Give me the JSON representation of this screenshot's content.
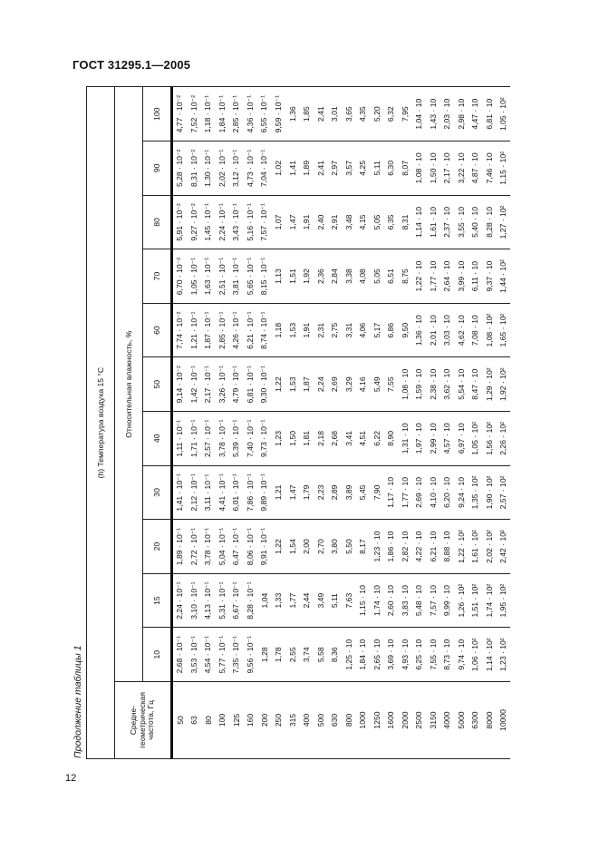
{
  "header": {
    "doc_title": "ГОСТ 31295.1—2005",
    "page_number": "12",
    "continuation": "Продолжение таблицы 1"
  },
  "table": {
    "title": "(h) Температура воздуха 15 °С",
    "freq_header": "Средне-геометрическая частота, Гц",
    "humidity_header": "Относительная влажность, %",
    "frequencies": [
      "50",
      "63",
      "80",
      "100",
      "125",
      "160",
      "200",
      "250",
      "315",
      "400",
      "500",
      "630",
      "800",
      "1000",
      "1250",
      "1600",
      "2000",
      "2500",
      "3150",
      "4000",
      "5000",
      "6300",
      "8000",
      "10000"
    ],
    "columns": [
      {
        "humidity": "10",
        "values": [
          "2,68 · 10⁻¹",
          "3,53 · 10⁻¹",
          "4,54 · 10⁻¹",
          "5,77 · 10⁻¹",
          "7,35 · 10⁻¹",
          "9,56 · 10⁻¹",
          "1,28",
          "1,78",
          "2,55",
          "3,74",
          "5,58",
          "8,36",
          "1,25 · 10",
          "1,84 · 10",
          "2,65 · 10",
          "3,69 · 10",
          "4,93 · 10",
          "6,25 · 10",
          "7,55 · 10",
          "8,73 · 10",
          "9,74 · 10",
          "1,06 · 10²",
          "1,14 · 10²",
          "1,23 · 10²"
        ]
      },
      {
        "humidity": "15",
        "values": [
          "2,24 · 10⁻¹",
          "3,10 · 10⁻¹",
          "4,13 · 10⁻¹",
          "5,31 · 10⁻¹",
          "6,67 · 10⁻¹",
          "8,28 · 10⁻¹",
          "1,04",
          "1,33",
          "1,77",
          "2,44",
          "3,49",
          "5,11",
          "7,63",
          "1,15 · 10",
          "1,74 · 10",
          "2,60 · 10",
          "3,83 · 10",
          "5,48 · 10",
          "7,57 · 10",
          "9,99 · 10",
          "1,26 · 10²",
          "1,51 · 10²",
          "1,74 · 10²",
          "1,95 · 10²"
        ]
      },
      {
        "humidity": "20",
        "values": [
          "1,89 · 10⁻¹",
          "2,72 · 10⁻¹",
          "3,78 · 10⁻¹",
          "5,04 · 10⁻¹",
          "6,47 · 10⁻¹",
          "8,06 · 10⁻¹",
          "9,91 · 10⁻¹",
          "1,22",
          "1,54",
          "2,00",
          "2,70",
          "3,80",
          "5,50",
          "8,17",
          "1,23 · 10",
          "1,86 · 10",
          "2,82 · 10",
          "4,22 · 10",
          "6,21 · 10",
          "8,88 · 10",
          "1,22 · 10²",
          "1,61 · 10²",
          "2,02 · 10²",
          "2,42 · 10²"
        ]
      },
      {
        "humidity": "30",
        "values": [
          "1,41 · 10⁻¹",
          "2,12 · 10⁻¹",
          "3,11 · 10⁻¹",
          "4,41 · 10⁻¹",
          "6,01 · 10⁻¹",
          "7,86 · 10⁻¹",
          "9,89 · 10⁻¹",
          "1,21",
          "1,47",
          "1,79",
          "2,23",
          "2,89",
          "3,89",
          "5,45",
          "7,90",
          "1,17 · 10",
          "1,77 · 10",
          "2,69 · 10",
          "4,10 · 10",
          "6,20 · 10",
          "9,24 · 10",
          "1,35 · 10²",
          "1,90 · 10²",
          "2,57 · 10²"
        ]
      },
      {
        "humidity": "40",
        "values": [
          "1,11 · 10⁻¹",
          "1,71 · 10⁻¹",
          "2,57 · 10⁻¹",
          "3,78 · 10⁻¹",
          "5,39 · 10⁻¹",
          "7,40 · 10⁻¹",
          "9,73 · 10⁻¹",
          "1,23",
          "1,50",
          "1,81",
          "2,18",
          "2,68",
          "3,41",
          "4,51",
          "6,22",
          "8,90",
          "1,31 · 10",
          "1,97 · 10",
          "2,99 · 10",
          "4,57 · 10",
          "6,97 · 10",
          "1,05 · 10²",
          "1,56 · 10²",
          "2,26 · 10²"
        ]
      },
      {
        "humidity": "50",
        "values": [
          "9,14 · 10⁻²",
          "1,42 · 10⁻¹",
          "2,17 · 10⁻¹",
          "3,26 · 10⁻¹",
          "4,79 · 10⁻¹",
          "6,81 · 10⁻¹",
          "9,30 · 10⁻¹",
          "1,22",
          "1,53",
          "1,87",
          "2,24",
          "2,69",
          "3,29",
          "4,16",
          "5,49",
          "7,55",
          "1,08 · 10",
          "1,59 · 10",
          "2,38 · 10",
          "3,62 · 10",
          "5,54 · 10",
          "8,47 · 10",
          "1,29 · 10²",
          "1,92 · 10²"
        ]
      },
      {
        "humidity": "60",
        "values": [
          "7,74 · 10⁻²",
          "1,21 · 10⁻¹",
          "1,87 · 10⁻¹",
          "2,85 · 10⁻¹",
          "4,26 · 10⁻¹",
          "6,21 · 10⁻¹",
          "8,74 · 10⁻¹",
          "1,18",
          "1,53",
          "1,91",
          "2,31",
          "2,75",
          "3,31",
          "4,06",
          "5,17",
          "6,86",
          "9,50",
          "1,36 · 10",
          "2,01 · 10",
          "3,03 · 10",
          "4,62 · 10",
          "7,08 · 10",
          "1,08 · 10²",
          "1,65 · 10²"
        ]
      },
      {
        "humidity": "70",
        "values": [
          "6,70 · 10⁻²",
          "1,05 · 10⁻¹",
          "1,63 · 10⁻¹",
          "2,51 · 10⁻¹",
          "3,81 · 10⁻¹",
          "5,65 · 10⁻¹",
          "8,15 · 10⁻¹",
          "1,13",
          "1,51",
          "1,92",
          "2,36",
          "2,84",
          "3,38",
          "4,08",
          "5,05",
          "6,51",
          "8,75",
          "1,22 · 10",
          "1,77 · 10",
          "2,64 · 10",
          "3,99 · 10",
          "6,11 · 10",
          "9,37 · 10",
          "1,44 · 10²"
        ]
      },
      {
        "humidity": "80",
        "values": [
          "5,91 · 10⁻²",
          "9,27 · 10⁻²",
          "1,45 · 10⁻¹",
          "2,24 · 10⁻¹",
          "3,43 · 10⁻¹",
          "5,16 · 10⁻¹",
          "7,57 · 10⁻¹",
          "1,07",
          "1,47",
          "1,91",
          "2,40",
          "2,91",
          "3,48",
          "4,15",
          "5,05",
          "6,35",
          "8,31",
          "1,14 · 10",
          "1,61 · 10",
          "2,37 · 10",
          "3,55 · 10",
          "5,40 · 10",
          "8,28 · 10",
          "1,27 · 10²"
        ]
      },
      {
        "humidity": "90",
        "values": [
          "5,28 · 10⁻²",
          "8,31 · 10⁻²",
          "1,30 · 10⁻¹",
          "2,02 · 10⁻¹",
          "3,12 · 10⁻¹",
          "4,73 · 10⁻¹",
          "7,04 · 10⁻¹",
          "1,02",
          "1,41",
          "1,89",
          "2,41",
          "2,97",
          "3,57",
          "4,25",
          "5,11",
          "6,30",
          "8,07",
          "1,08 · 10",
          "1,50 · 10",
          "2,17 · 10",
          "3,22 · 10",
          "4,87 · 10",
          "7,46 · 10",
          "1,15 · 10²"
        ]
      },
      {
        "humidity": "100",
        "values": [
          "4,77 · 10⁻²",
          "7,52 · 10⁻²",
          "1,18 · 10⁻¹",
          "1,84 · 10⁻¹",
          "2,85 · 10⁻¹",
          "4,36 · 10⁻¹",
          "6,55 · 10⁻¹",
          "9,59 · 10⁻¹",
          "1,36",
          "1,85",
          "2,41",
          "3,01",
          "3,65",
          "4,35",
          "5,20",
          "6,32",
          "7,95",
          "1,04 · 10",
          "1,43 · 10",
          "2,03 · 10",
          "2,98 · 10",
          "4,47 · 10",
          "6,81 · 10",
          "1,05 · 10²"
        ]
      }
    ]
  }
}
